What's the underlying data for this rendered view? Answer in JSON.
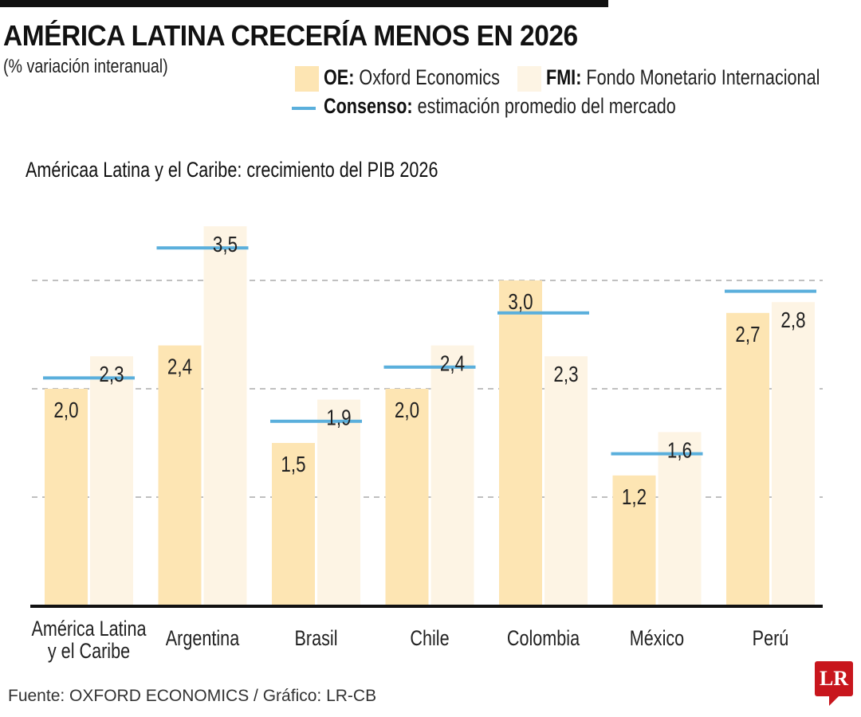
{
  "header": {
    "title": "AMÉRICA LATINA CRECERÍA MENOS EN 2026",
    "subtitle": "(% variación interanual)"
  },
  "legend": {
    "oe": {
      "key": "OE:",
      "label": "Oxford Economics",
      "color": "#fde5b3"
    },
    "fmi": {
      "key": "FMI:",
      "label": "Fondo Monetario Internacional",
      "color": "#fdf4e4"
    },
    "consenso": {
      "key": "Consenso:",
      "label": "estimación promedio del mercado",
      "color": "#5aafdc"
    }
  },
  "chart_data": {
    "type": "bar",
    "title": "Américaa Latina y el Caribe: crecimiento del PIB 2026",
    "xlabel": "",
    "ylabel": "% variación interanual",
    "ylim": [
      0,
      3.5
    ],
    "grid": true,
    "gridlines": [
      1,
      2,
      3
    ],
    "legend_position": "top-right",
    "categories": [
      "América Latina|y el Caribe",
      "Argentina",
      "Brasil",
      "Chile",
      "Colombia",
      "México",
      "Perú"
    ],
    "series": [
      {
        "name": "OE: Oxford Economics",
        "type": "bar",
        "color": "#fde5b3",
        "values": [
          2.0,
          2.4,
          1.5,
          2.0,
          3.0,
          1.2,
          2.7
        ],
        "labels": [
          "2,0",
          "2,4",
          "1,5",
          "2,0",
          "3,0",
          "1,2",
          "2,7"
        ]
      },
      {
        "name": "FMI: Fondo Monetario Internacional",
        "type": "bar",
        "color": "#fdf4e4",
        "values": [
          2.3,
          3.5,
          1.9,
          2.4,
          2.3,
          1.6,
          2.8
        ],
        "labels": [
          "2,3",
          "3,5",
          "1,9",
          "2,4",
          "2,3",
          "1,6",
          "2,8"
        ]
      },
      {
        "name": "Consenso: estimación promedio del mercado",
        "type": "line-marker",
        "color": "#5aafdc",
        "values": [
          2.1,
          3.3,
          1.7,
          2.2,
          2.7,
          1.4,
          2.9
        ]
      }
    ]
  },
  "footer": {
    "source": "Fuente: OXFORD ECONOMICS / Gráfico: LR-CB",
    "logo": "LR"
  }
}
